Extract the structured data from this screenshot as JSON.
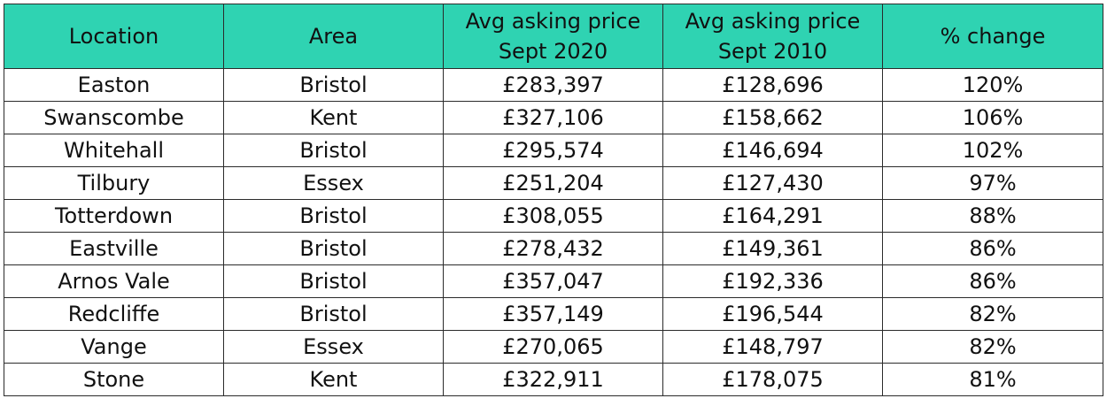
{
  "table": {
    "header": {
      "location": "Location",
      "area": "Area",
      "price_2020_line1": "Avg asking price",
      "price_2020_line2": "Sept 2020",
      "price_2010_line1": "Avg asking price",
      "price_2010_line2": "Sept 2010",
      "change": "% change"
    },
    "header_color": "#2fd3b2",
    "rows": [
      {
        "location": "Easton",
        "area": "Bristol",
        "price_2020": "£283,397",
        "price_2010": "£128,696",
        "change": "120%"
      },
      {
        "location": "Swanscombe",
        "area": "Kent",
        "price_2020": "£327,106",
        "price_2010": "£158,662",
        "change": "106%"
      },
      {
        "location": "Whitehall",
        "area": "Bristol",
        "price_2020": "£295,574",
        "price_2010": "£146,694",
        "change": "102%"
      },
      {
        "location": "Tilbury",
        "area": "Essex",
        "price_2020": "£251,204",
        "price_2010": "£127,430",
        "change": "97%"
      },
      {
        "location": "Totterdown",
        "area": "Bristol",
        "price_2020": "£308,055",
        "price_2010": "£164,291",
        "change": "88%"
      },
      {
        "location": "Eastville",
        "area": "Bristol",
        "price_2020": "£278,432",
        "price_2010": "£149,361",
        "change": "86%"
      },
      {
        "location": "Arnos Vale",
        "area": "Bristol",
        "price_2020": "£357,047",
        "price_2010": "£192,336",
        "change": "86%"
      },
      {
        "location": "Redcliffe",
        "area": "Bristol",
        "price_2020": "£357,149",
        "price_2010": "£196,544",
        "change": "82%"
      },
      {
        "location": "Vange",
        "area": "Essex",
        "price_2020": "£270,065",
        "price_2010": "£148,797",
        "change": "82%"
      },
      {
        "location": "Stone",
        "area": "Kent",
        "price_2020": "£322,911",
        "price_2010": "£178,075",
        "change": "81%"
      }
    ]
  }
}
